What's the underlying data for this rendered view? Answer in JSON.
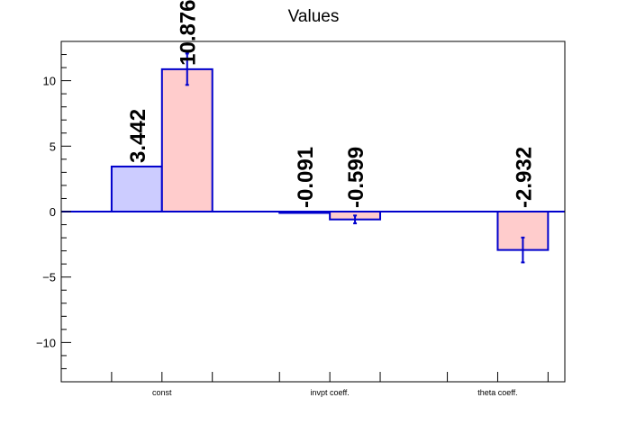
{
  "chart_data": {
    "type": "bar",
    "title": "Values",
    "categories": [
      "const",
      "invpt coeff.",
      "theta coeff."
    ],
    "ylim": [
      -13,
      13
    ],
    "yticks": [
      -10,
      -5,
      0,
      5,
      10
    ],
    "ytick_labels": [
      "−10",
      "−5",
      "0",
      "5",
      "10"
    ],
    "grid": false,
    "series": [
      {
        "fill": "#ccccff",
        "stroke": "#0000cc",
        "values": [
          3.442,
          -0.091,
          null
        ],
        "labels": [
          "3.442",
          "-0.091",
          ""
        ],
        "errors": [
          null,
          null,
          null
        ]
      },
      {
        "fill": "#ffcccc",
        "stroke": "#0000cc",
        "values": [
          10.876,
          -0.599,
          -2.932
        ],
        "labels": [
          "10.876",
          "-0.599",
          "-2.932"
        ],
        "errors": [
          1.2,
          0.3,
          0.95
        ]
      }
    ],
    "colors": {
      "axis": "#000000",
      "zero_line": "#0000cc",
      "error_bar": "#0000cc"
    }
  }
}
